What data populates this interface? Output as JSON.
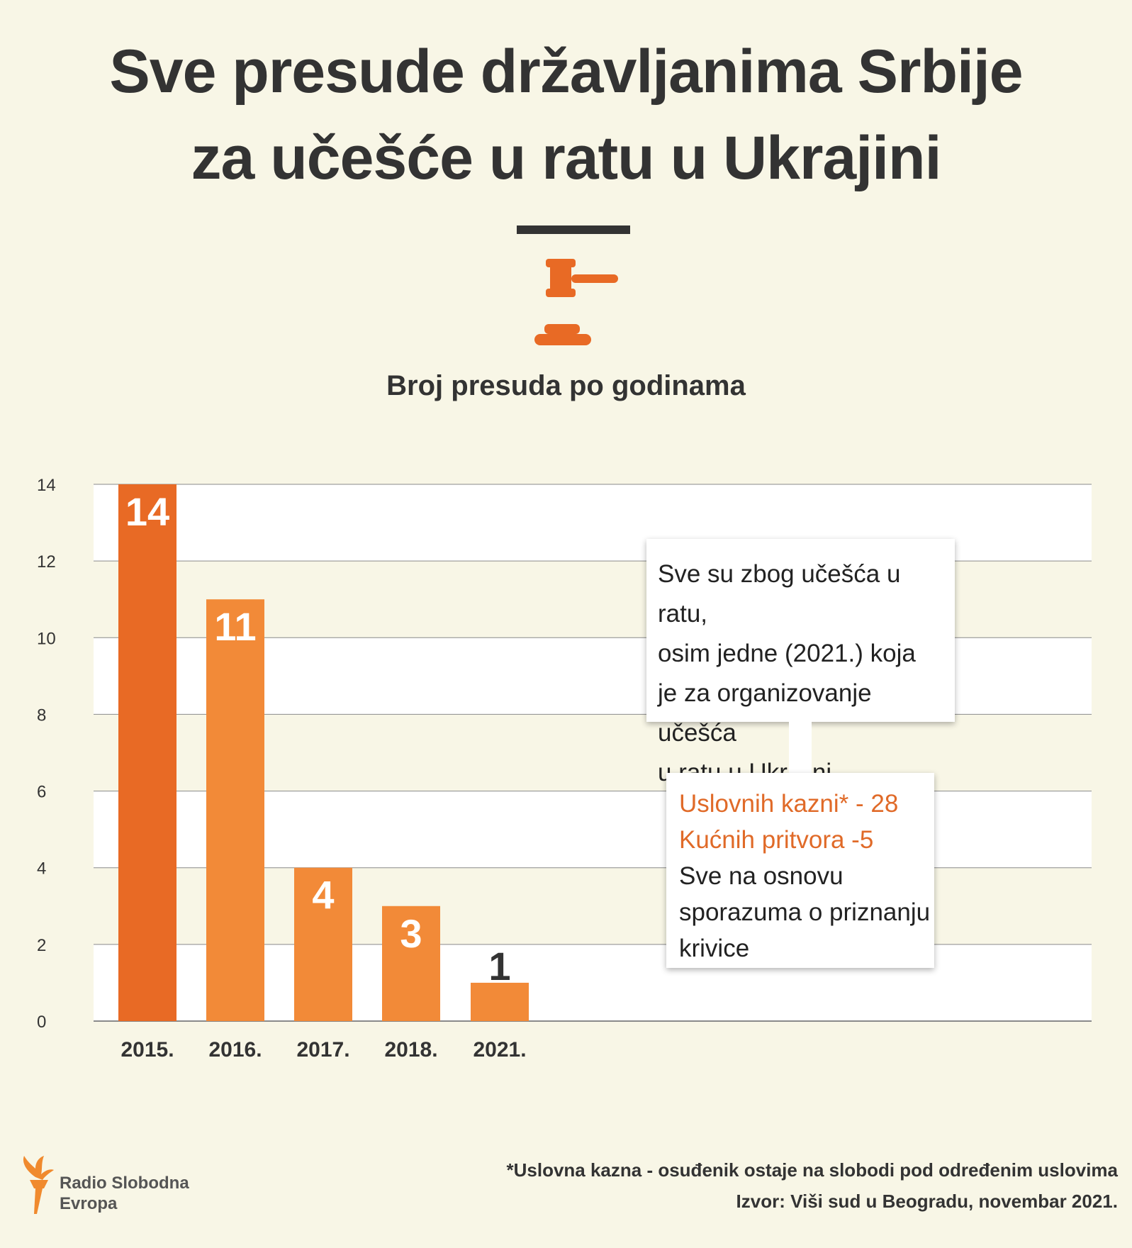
{
  "title_line1": "Sve presude državljanima Srbije",
  "title_line2": "za učešće u ratu u Ukrajini",
  "icons": {
    "gavel": "gavel-icon",
    "logo": "torch-icon"
  },
  "colors": {
    "background": "#f8f6e6",
    "bar_first": "#e86a25",
    "bar_other": "#f28a38",
    "accent_text": "#e06a28",
    "text": "#333333"
  },
  "chart_data": {
    "type": "bar",
    "title": "Broj presuda po godinama",
    "categories": [
      "2015.",
      "2016.",
      "2017.",
      "2018.",
      "2021."
    ],
    "values": [
      14,
      11,
      4,
      3,
      1
    ],
    "ylim": [
      0,
      14
    ],
    "yticks": [
      "0",
      "2",
      "4",
      "6",
      "8",
      "10",
      "12",
      "14"
    ],
    "grid": true,
    "legend": "none"
  },
  "note1_lines": [
    "Sve su zbog učešća u ratu,",
    "osim jedne (2021.) koja",
    "je za organizovanje učešća",
    "u ratu u Ukrajini."
  ],
  "note2": {
    "line1": "Uslovnih kazni* - 28",
    "line2": "Kućnih pritvora -5",
    "line3": "Sve na osnovu",
    "line4": "sporazuma o priznanju",
    "line5": "krivice"
  },
  "footnote_line1": "*Uslovna kazna - osuđenik ostaje na slobodi pod određenim uslovima",
  "footnote_line2": "Izvor: Viši sud u Beogradu, novembar 2021.",
  "logo_line1": "Radio Slobodna",
  "logo_line2": "Evropa"
}
